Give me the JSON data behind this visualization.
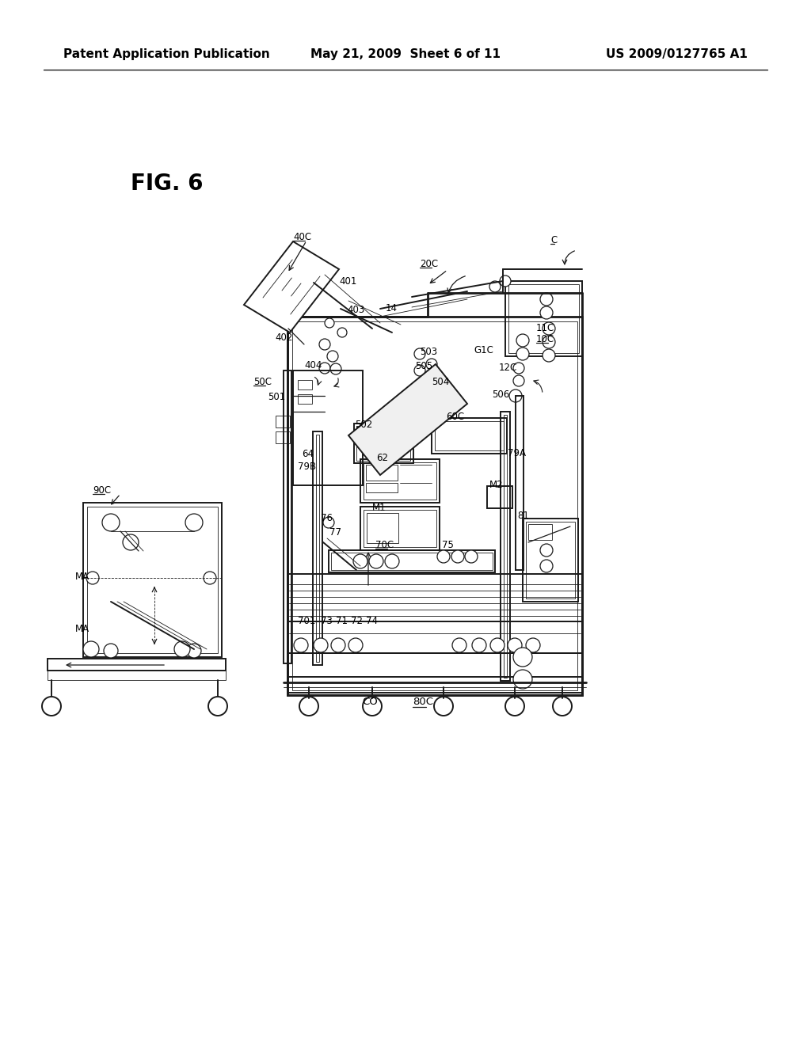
{
  "background_color": "#ffffff",
  "header_left": "Patent Application Publication",
  "header_center": "May 21, 2009  Sheet 6 of 11",
  "header_right": "US 2009/0127765 A1",
  "fig_label": "FIG. 6",
  "header_fontsize": 11,
  "fig_fontsize": 20,
  "line_color": "#1a1a1a",
  "lw_heavy": 2.0,
  "lw_med": 1.4,
  "lw_light": 0.9,
  "lw_thin": 0.6
}
